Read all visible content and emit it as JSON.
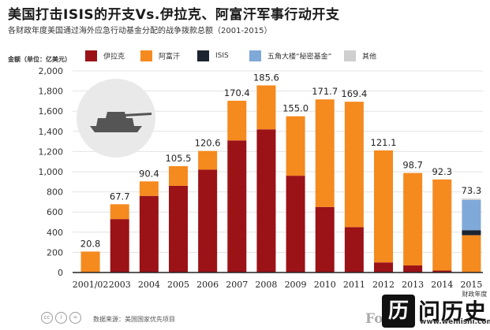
{
  "header": {
    "title": "美国打击ISIS的开支Vs.伊拉克、阿富汗军事行动开支",
    "subtitle": "各财政年度美国通过海外应急行动基金分配的战争拨款总额（2001-2015）",
    "unit_label": "金额（单位：亿美元）"
  },
  "legend": [
    {
      "name": "伊拉克",
      "color": "#9b1217"
    },
    {
      "name": "阿富汗",
      "color": "#f58a1f"
    },
    {
      "name": "ISIS",
      "color": "#1c2431"
    },
    {
      "name": "五角大楼“秘密基金”",
      "color": "#7fa9d8"
    },
    {
      "name": "其他",
      "color": "#cfcfcf"
    }
  ],
  "chart_data": {
    "type": "bar",
    "stacked": true,
    "categories": [
      "2001/02",
      "2003",
      "2004",
      "2005",
      "2006",
      "2007",
      "2008",
      "2009",
      "2010",
      "2011",
      "2012",
      "2013",
      "2014",
      "2015"
    ],
    "totals": [
      20.8,
      67.7,
      90.4,
      105.5,
      120.6,
      170.4,
      185.6,
      155.0,
      171.7,
      169.4,
      121.1,
      98.7,
      92.3,
      73.3
    ],
    "total_labels": [
      "20.8",
      "67.7",
      "90.4",
      "105.5",
      "120.6",
      "170.4",
      "185.6",
      "155.0",
      "171.7",
      "169.4",
      "121.1",
      "98.7",
      "92.3",
      "73.3"
    ],
    "series": [
      {
        "name": "伊拉克",
        "color": "#9b1217",
        "values": [
          0,
          53,
          76,
          86,
          102,
          131,
          142,
          96,
          65,
          45,
          10,
          7,
          2,
          0
        ]
      },
      {
        "name": "阿富汗",
        "color": "#f58a1f",
        "values": [
          20.8,
          14.7,
          14.4,
          19.5,
          18.6,
          39.4,
          43.6,
          59,
          106.7,
          124.4,
          111.1,
          91.7,
          90.3,
          37
        ]
      },
      {
        "name": "ISIS",
        "color": "#1c2431",
        "values": [
          0,
          0,
          0,
          0,
          0,
          0,
          0,
          0,
          0,
          0,
          0,
          0,
          0,
          5
        ]
      },
      {
        "name": "五角大楼“秘密基金”",
        "color": "#7fa9d8",
        "values": [
          0,
          0,
          0,
          0,
          0,
          0,
          0,
          0,
          0,
          0,
          0,
          0,
          0,
          30
        ]
      },
      {
        "name": "其他",
        "color": "#cfcfcf",
        "values": [
          0,
          0,
          0,
          0,
          0,
          0,
          0,
          0,
          0,
          0,
          0,
          0,
          0,
          1.3
        ]
      }
    ],
    "y_ticks": [
      "0",
      "200",
      "400",
      "600",
      "800",
      "1,000",
      "1,200",
      "1,400",
      "1,600",
      "1,800",
      "2,000"
    ],
    "ylim": [
      0,
      200
    ],
    "grid": true,
    "legend_position": "top"
  },
  "footer": {
    "source": "数据来源：美国国家优先项目",
    "axis_note": "财政年度"
  },
  "watermark": {
    "forbes": "Fo",
    "mark": "历",
    "name": "问历史",
    "url": "www.wenlishi.com"
  }
}
